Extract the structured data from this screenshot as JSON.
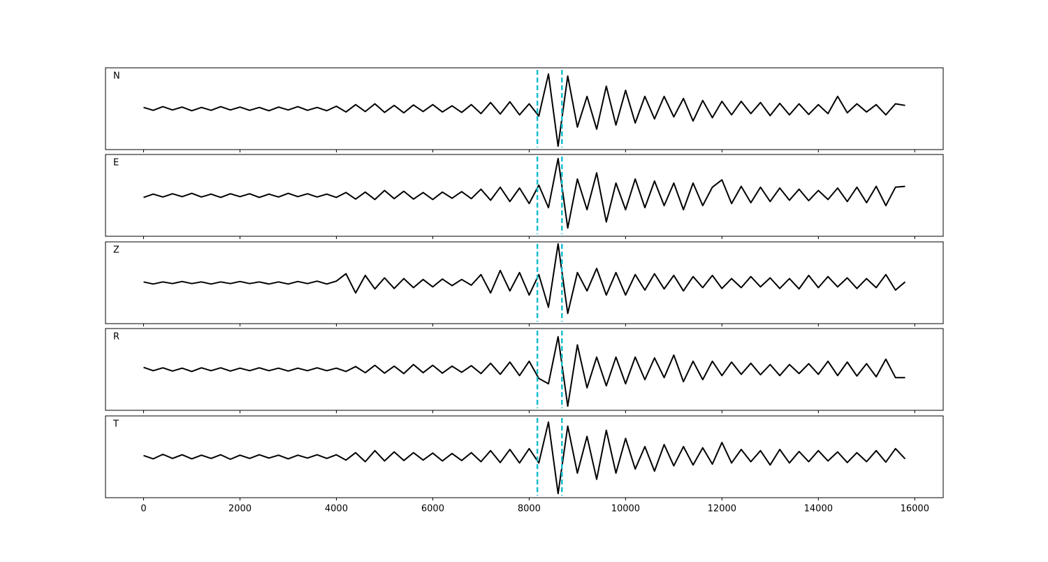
{
  "chart_data": {
    "type": "line",
    "x": [
      0,
      200,
      400,
      600,
      800,
      1000,
      1200,
      1400,
      1600,
      1800,
      2000,
      2200,
      2400,
      2600,
      2800,
      3000,
      3200,
      3400,
      3600,
      3800,
      4000,
      4200,
      4400,
      4600,
      4800,
      5000,
      5200,
      5400,
      5600,
      5800,
      6000,
      6200,
      6400,
      6600,
      6800,
      7000,
      7200,
      7400,
      7600,
      7800,
      8000,
      8200,
      8400,
      8600,
      8800,
      9000,
      9200,
      9400,
      9600,
      9800,
      10000,
      10200,
      10400,
      10600,
      10800,
      11000,
      11200,
      11400,
      11600,
      11800,
      12000,
      12200,
      12400,
      12600,
      12800,
      13000,
      13200,
      13400,
      13600,
      13800,
      14000,
      14200,
      14400,
      14600,
      14800,
      15000,
      15200,
      15400,
      15600,
      15800
    ],
    "series": [
      {
        "name": "N",
        "color": "#000000",
        "values": [
          0.03,
          -0.04,
          0.05,
          -0.03,
          0.04,
          -0.05,
          0.03,
          -0.04,
          0.05,
          -0.03,
          0.04,
          -0.04,
          0.03,
          -0.05,
          0.04,
          -0.03,
          0.05,
          -0.04,
          0.03,
          -0.05,
          0.06,
          -0.08,
          0.1,
          -0.07,
          0.12,
          -0.09,
          0.08,
          -0.1,
          0.09,
          -0.07,
          0.1,
          -0.08,
          0.07,
          -0.09,
          0.1,
          -0.12,
          0.15,
          -0.13,
          0.17,
          -0.15,
          0.12,
          -0.18,
          0.85,
          -0.92,
          0.8,
          -0.45,
          0.3,
          -0.5,
          0.55,
          -0.4,
          0.45,
          -0.35,
          0.3,
          -0.25,
          0.3,
          -0.2,
          0.25,
          -0.3,
          0.2,
          -0.22,
          0.18,
          -0.15,
          0.18,
          -0.12,
          0.15,
          -0.17,
          0.13,
          -0.15,
          0.12,
          -0.14,
          0.1,
          -0.12,
          0.3,
          -0.1,
          0.12,
          -0.08,
          0.1,
          -0.15,
          0.12,
          0.08
        ]
      },
      {
        "name": "E",
        "color": "#000000",
        "values": [
          -0.05,
          0.03,
          -0.04,
          0.04,
          -0.03,
          0.05,
          -0.04,
          0.03,
          -0.05,
          0.04,
          -0.03,
          0.04,
          -0.05,
          0.03,
          -0.04,
          0.05,
          -0.03,
          0.04,
          -0.04,
          0.03,
          -0.05,
          0.07,
          -0.09,
          0.08,
          -0.1,
          0.12,
          -0.08,
          0.1,
          -0.09,
          0.07,
          -0.1,
          0.08,
          -0.07,
          0.09,
          -0.08,
          0.15,
          -0.12,
          0.2,
          -0.15,
          0.18,
          -0.2,
          0.25,
          -0.3,
          0.9,
          -0.8,
          0.4,
          -0.35,
          0.55,
          -0.65,
          0.3,
          -0.35,
          0.4,
          -0.3,
          0.35,
          -0.25,
          0.3,
          -0.35,
          0.3,
          -0.25,
          0.2,
          0.38,
          -0.2,
          0.22,
          -0.18,
          0.2,
          -0.15,
          0.18,
          -0.12,
          0.15,
          -0.13,
          0.12,
          -0.1,
          0.18,
          -0.15,
          0.2,
          -0.18,
          0.22,
          -0.25,
          0.2,
          0.22
        ]
      },
      {
        "name": "Z",
        "color": "#000000",
        "values": [
          0.02,
          -0.03,
          0.02,
          -0.02,
          0.03,
          -0.02,
          0.02,
          -0.03,
          0.02,
          -0.02,
          0.03,
          -0.02,
          0.02,
          -0.03,
          0.02,
          -0.03,
          0.03,
          -0.02,
          0.04,
          -0.03,
          0.04,
          0.22,
          -0.25,
          0.18,
          -0.15,
          0.12,
          -0.14,
          0.1,
          -0.12,
          0.08,
          -0.1,
          0.09,
          -0.07,
          0.08,
          -0.06,
          0.2,
          -0.25,
          0.3,
          -0.2,
          0.25,
          -0.3,
          0.2,
          -0.6,
          0.95,
          -0.75,
          0.25,
          -0.2,
          0.35,
          -0.3,
          0.25,
          -0.3,
          0.2,
          -0.18,
          0.22,
          -0.15,
          0.18,
          -0.2,
          0.15,
          -0.12,
          0.18,
          -0.14,
          0.1,
          -0.12,
          0.15,
          -0.1,
          0.12,
          -0.14,
          0.1,
          -0.15,
          0.18,
          -0.12,
          0.15,
          -0.1,
          0.12,
          -0.14,
          0.1,
          -0.12,
          0.2,
          -0.18,
          0.02
        ]
      },
      {
        "name": "R",
        "color": "#000000",
        "values": [
          0.05,
          -0.03,
          0.04,
          -0.04,
          0.03,
          -0.05,
          0.04,
          -0.03,
          0.04,
          -0.04,
          0.03,
          -0.03,
          0.04,
          -0.03,
          0.03,
          -0.04,
          0.03,
          -0.03,
          0.04,
          -0.03,
          0.03,
          -0.05,
          0.07,
          -0.08,
          0.1,
          -0.09,
          0.08,
          -0.1,
          0.12,
          -0.08,
          0.1,
          -0.09,
          0.08,
          -0.07,
          0.09,
          -0.1,
          0.15,
          -0.12,
          0.18,
          -0.15,
          0.2,
          -0.22,
          -0.35,
          0.8,
          -0.9,
          0.6,
          -0.45,
          0.3,
          -0.4,
          0.3,
          -0.35,
          0.3,
          -0.25,
          0.28,
          -0.2,
          0.35,
          -0.3,
          0.2,
          -0.25,
          0.2,
          -0.15,
          0.18,
          -0.12,
          0.15,
          -0.13,
          0.12,
          -0.15,
          0.12,
          -0.1,
          0.14,
          -0.12,
          0.2,
          -0.15,
          0.18,
          -0.16,
          0.14,
          -0.18,
          0.25,
          -0.2,
          -0.2
        ]
      },
      {
        "name": "T",
        "color": "#000000",
        "values": [
          0.03,
          -0.05,
          0.06,
          -0.04,
          0.05,
          -0.05,
          0.04,
          -0.04,
          0.05,
          -0.06,
          0.04,
          -0.04,
          0.05,
          -0.03,
          0.04,
          -0.05,
          0.04,
          -0.03,
          0.05,
          -0.04,
          0.05,
          -0.08,
          0.1,
          -0.12,
          0.15,
          -0.1,
          0.12,
          -0.09,
          0.1,
          -0.08,
          0.09,
          -0.1,
          0.08,
          -0.09,
          0.1,
          -0.12,
          0.15,
          -0.14,
          0.18,
          -0.15,
          0.2,
          -0.15,
          0.85,
          -0.9,
          0.75,
          -0.4,
          0.5,
          -0.55,
          0.65,
          -0.4,
          0.45,
          -0.3,
          0.25,
          -0.35,
          0.3,
          -0.22,
          0.25,
          -0.2,
          0.22,
          -0.18,
          0.35,
          -0.15,
          0.18,
          -0.12,
          0.15,
          -0.2,
          0.18,
          -0.15,
          0.13,
          -0.12,
          0.15,
          -0.1,
          0.12,
          -0.14,
          0.1,
          -0.12,
          0.15,
          -0.13,
          0.2,
          -0.05
        ]
      }
    ],
    "xlim": [
      -790,
      16590
    ],
    "xticks": [
      0,
      2000,
      4000,
      6000,
      8000,
      10000,
      12000,
      14000,
      16000
    ],
    "ylim": [
      -1,
      1
    ],
    "vlines": [
      8170,
      8680
    ],
    "vline_color": "#17becf"
  }
}
